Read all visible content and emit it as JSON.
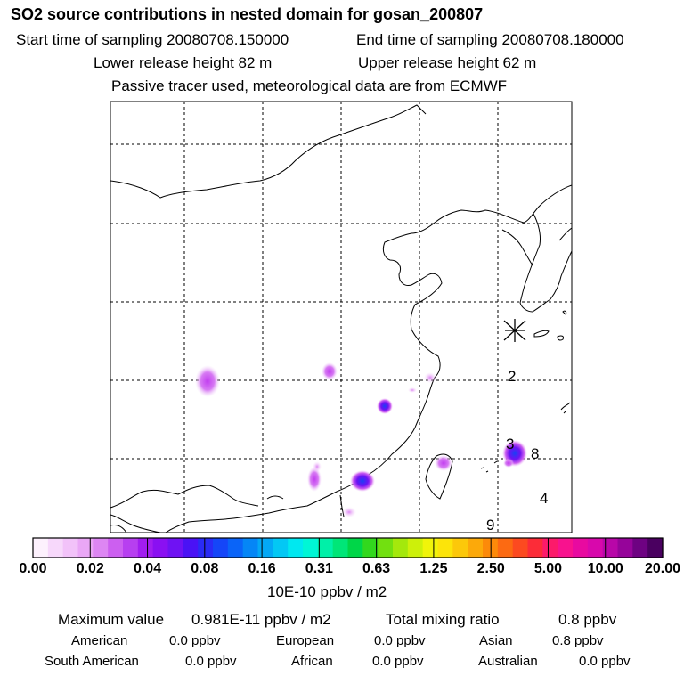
{
  "header": {
    "title": "SO2 source contributions in nested domain for gosan_200807",
    "start": "Start time of sampling 20080708.150000",
    "end": "End time of sampling 20080708.180000",
    "lower": "Lower release height   82 m",
    "upper": "Upper release height   62 m",
    "note": "Passive tracer used, meteorological data are from ECMWF"
  },
  "map": {
    "labels": [
      "2",
      "3",
      "8",
      "4",
      "9"
    ]
  },
  "colorbar": {
    "ticks": [
      "0.00",
      "0.02",
      "0.04",
      "0.08",
      "0.16",
      "0.31",
      "0.63",
      "1.25",
      "2.50",
      "5.00",
      "10.00",
      "20.00"
    ],
    "unit": "10E-10 ppbv / m2",
    "colors": [
      "#fdf1fd",
      "#f7d8fb",
      "#f2c2f9",
      "#eaa7f6",
      "#dd86f3",
      "#cc5ff0",
      "#b73ff0",
      "#a11df0",
      "#8a10f2",
      "#6f12f3",
      "#4a12f5",
      "#2a2bf6",
      "#1546f8",
      "#0a64f8",
      "#0586f6",
      "#04a8f6",
      "#03c8f4",
      "#00e8f0",
      "#00f6d6",
      "#00f0a8",
      "#00e678",
      "#00d648",
      "#32d81e",
      "#72e010",
      "#a4e80c",
      "#cdf00a",
      "#f0f40a",
      "#fce40a",
      "#fcc80a",
      "#fca90a",
      "#fc8a0a",
      "#fc6a12",
      "#fc4a20",
      "#fc2c38",
      "#fc1a6a",
      "#f8128e",
      "#e80aa0",
      "#d808ac",
      "#b807a8",
      "#96049a",
      "#6e0282",
      "#4a0060"
    ]
  },
  "stats": {
    "max_label": "Maximum value",
    "max_value": "0.981E-11 ppbv / m2",
    "total_label": "Total mixing ratio",
    "total_value": "0.8 ppbv",
    "regions": [
      {
        "name": "American",
        "value": "0.0 ppbv"
      },
      {
        "name": "European",
        "value": "0.0 ppbv"
      },
      {
        "name": "Asian",
        "value": "0.8 ppbv"
      },
      {
        "name": "South American",
        "value": "0.0 ppbv"
      },
      {
        "name": "African",
        "value": "0.0 ppbv"
      },
      {
        "name": "Australian",
        "value": "0.0 ppbv"
      }
    ]
  }
}
